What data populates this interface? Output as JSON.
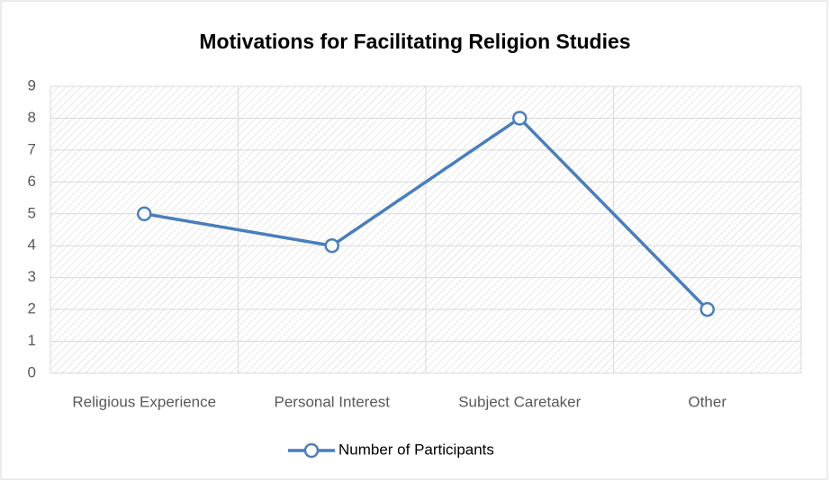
{
  "chart_data": {
    "type": "line",
    "title": "Motivations for Facilitating Religion Studies",
    "categories": [
      "Religious Experience",
      "Personal Interest",
      "Subject Caretaker",
      "Other"
    ],
    "series": [
      {
        "name": "Number of Participants",
        "color": "#4a7ebb",
        "values": [
          5,
          4,
          8,
          2
        ]
      }
    ],
    "ylim": [
      0,
      9
    ],
    "yticks": [
      0,
      1,
      2,
      3,
      4,
      5,
      6,
      7,
      8,
      9
    ],
    "grid": true,
    "legend": "bottom"
  }
}
